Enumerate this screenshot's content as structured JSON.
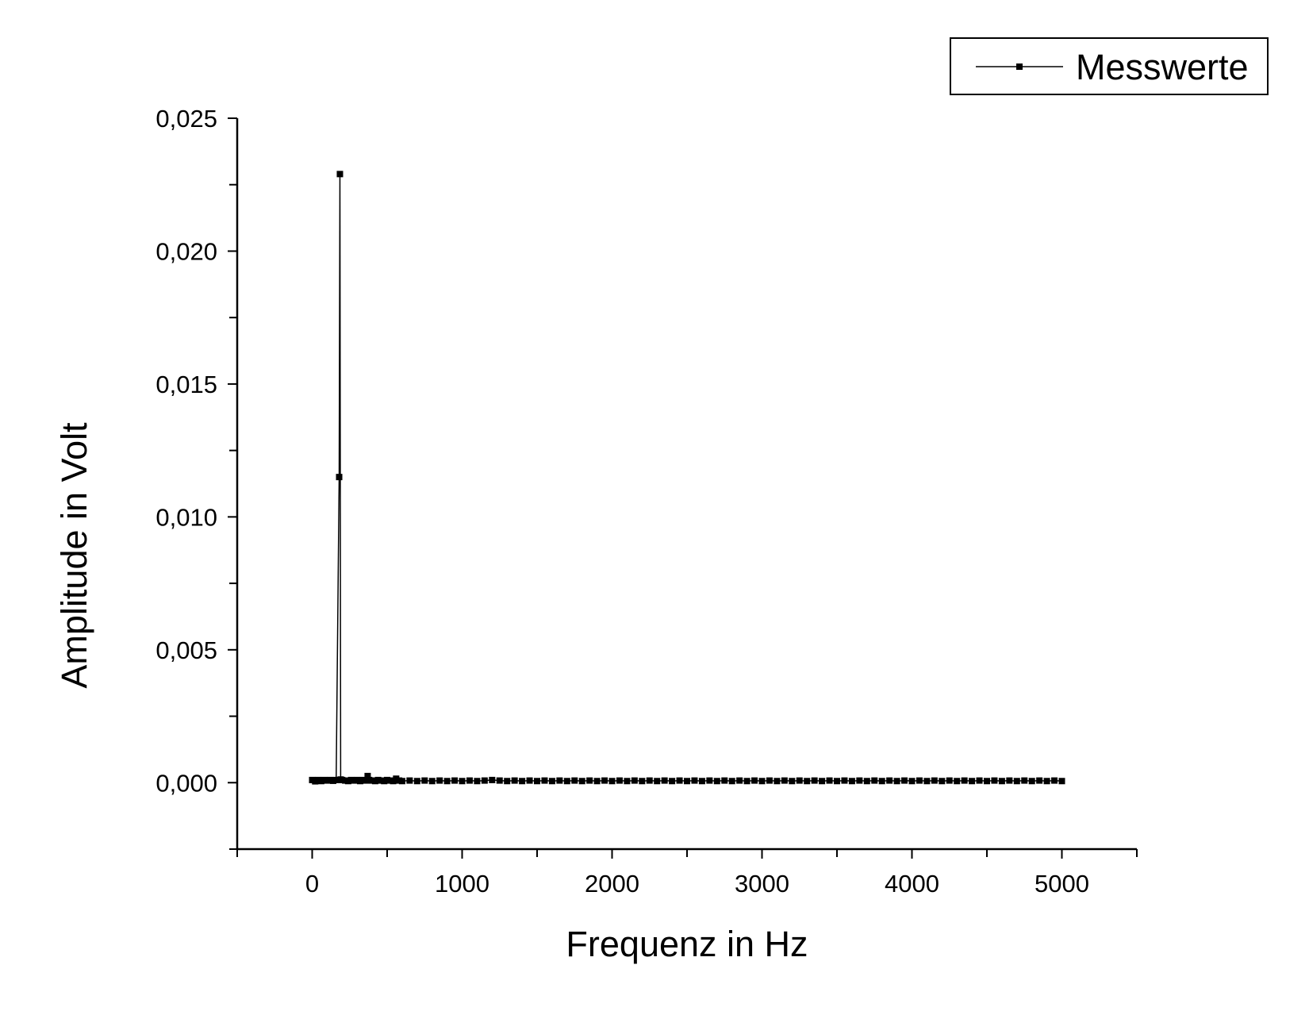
{
  "chart_data": {
    "type": "line",
    "xlabel": "Frequenz in Hz",
    "ylabel": "Amplitude in Volt",
    "xlim": [
      -500,
      5500
    ],
    "ylim": [
      -0.0025,
      0.025
    ],
    "x_ticks": [
      0,
      1000,
      2000,
      3000,
      4000,
      5000
    ],
    "x_tick_labels": [
      "0",
      "1000",
      "2000",
      "3000",
      "4000",
      "5000"
    ],
    "y_ticks": [
      0.0,
      0.005,
      0.01,
      0.015,
      0.02,
      0.025
    ],
    "y_tick_labels": [
      "0,000",
      "0,005",
      "0,010",
      "0,015",
      "0,020",
      "0,025"
    ],
    "grid": false,
    "legend_position": "top-right",
    "series": [
      {
        "name": "Messwerte",
        "marker": "square",
        "color": "#000000",
        "x": [
          0,
          20,
          40,
          60,
          80,
          100,
          120,
          140,
          160,
          180,
          185,
          190,
          200,
          220,
          240,
          260,
          280,
          300,
          320,
          340,
          360,
          370,
          380,
          400,
          420,
          440,
          460,
          480,
          500,
          520,
          540,
          560,
          580,
          600,
          650,
          700,
          750,
          800,
          850,
          900,
          950,
          1000,
          1050,
          1100,
          1150,
          1200,
          1250,
          1300,
          1350,
          1400,
          1450,
          1500,
          1550,
          1600,
          1650,
          1700,
          1750,
          1800,
          1850,
          1900,
          1950,
          2000,
          2050,
          2100,
          2150,
          2200,
          2250,
          2300,
          2350,
          2400,
          2450,
          2500,
          2550,
          2600,
          2650,
          2700,
          2750,
          2800,
          2850,
          2900,
          2950,
          3000,
          3050,
          3100,
          3150,
          3200,
          3250,
          3300,
          3350,
          3400,
          3450,
          3500,
          3550,
          3600,
          3650,
          3700,
          3750,
          3800,
          3850,
          3900,
          3950,
          4000,
          4050,
          4100,
          4150,
          4200,
          4250,
          4300,
          4350,
          4400,
          4450,
          4500,
          4550,
          4600,
          4650,
          4700,
          4750,
          4800,
          4850,
          4900,
          4950,
          5000
        ],
        "y": [
          0.0001,
          5e-05,
          0.0001,
          6e-05,
          0.0001,
          8e-05,
          0.0001,
          7e-05,
          0.0001,
          0.0115,
          0.0229,
          0.00012,
          0.0001,
          8e-05,
          6e-05,
          0.0001,
          8e-05,
          0.0001,
          6e-05,
          0.0001,
          8e-05,
          0.00025,
          0.0001,
          8e-05,
          6e-05,
          0.0001,
          8e-05,
          6e-05,
          0.0001,
          8e-05,
          6e-05,
          0.00015,
          8e-05,
          6e-05,
          8e-05,
          6e-05,
          8e-05,
          6e-05,
          8e-05,
          6e-05,
          8e-05,
          6e-05,
          8e-05,
          6e-05,
          8e-05,
          0.0001,
          8e-05,
          6e-05,
          8e-05,
          6e-05,
          8e-05,
          6e-05,
          8e-05,
          6e-05,
          8e-05,
          6e-05,
          8e-05,
          6e-05,
          8e-05,
          6e-05,
          8e-05,
          6e-05,
          8e-05,
          6e-05,
          8e-05,
          6e-05,
          8e-05,
          6e-05,
          8e-05,
          6e-05,
          8e-05,
          6e-05,
          8e-05,
          6e-05,
          8e-05,
          6e-05,
          8e-05,
          6e-05,
          8e-05,
          6e-05,
          8e-05,
          6e-05,
          8e-05,
          6e-05,
          8e-05,
          6e-05,
          8e-05,
          6e-05,
          8e-05,
          6e-05,
          8e-05,
          6e-05,
          8e-05,
          6e-05,
          8e-05,
          6e-05,
          8e-05,
          6e-05,
          8e-05,
          6e-05,
          8e-05,
          6e-05,
          8e-05,
          6e-05,
          8e-05,
          6e-05,
          8e-05,
          6e-05,
          8e-05,
          6e-05,
          8e-05,
          6e-05,
          8e-05,
          6e-05,
          8e-05,
          6e-05,
          8e-05,
          6e-05,
          8e-05,
          6e-05,
          8e-05,
          6e-05
        ]
      }
    ]
  }
}
